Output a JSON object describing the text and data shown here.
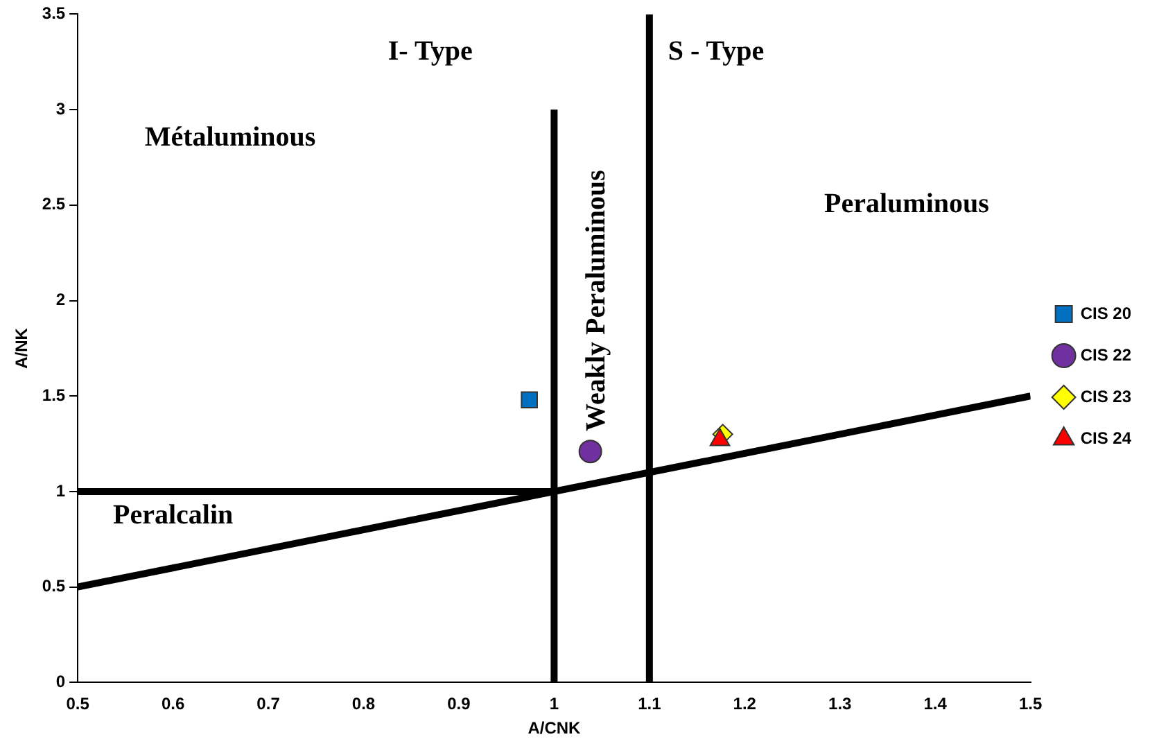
{
  "chart_data": {
    "type": "scatter",
    "xlabel": "A/CNK",
    "ylabel": "A/NK",
    "xlim": [
      0.5,
      1.5
    ],
    "ylim": [
      0,
      3.5
    ],
    "xticks": [
      0.5,
      0.6,
      0.7,
      0.8,
      0.9,
      1,
      1.1,
      1.2,
      1.3,
      1.4,
      1.5
    ],
    "yticks": [
      0,
      0.5,
      1,
      1.5,
      2,
      2.5,
      3,
      3.5
    ],
    "grid": false,
    "legend": "right",
    "annotations": [
      "I- Type",
      "S - Type",
      "Métaluminous",
      "Peraluminous",
      "Weakly Peraluminous",
      "Peralcalin"
    ],
    "series": [
      {
        "name": "CIS 20",
        "color": "#0070c0",
        "marker": "square",
        "x": [
          0.974
        ],
        "values": [
          1.48
        ]
      },
      {
        "name": "CIS 22",
        "color": "#7030a0",
        "marker": "circle",
        "x": [
          1.038
        ],
        "values": [
          1.21
        ]
      },
      {
        "name": "CIS 23",
        "color": "#ffff00",
        "marker": "diamond",
        "x": [
          1.177
        ],
        "values": [
          1.3
        ]
      },
      {
        "name": "CIS 24",
        "color": "#ff0000",
        "marker": "triangle",
        "x": [
          1.174
        ],
        "values": [
          1.27
        ]
      },
      {
        "type": "line",
        "color": "#000000",
        "marker": "none",
        "x": [
          0.5,
          1
        ],
        "values": [
          1,
          1
        ]
      },
      {
        "type": "line",
        "color": "#000000",
        "marker": "none",
        "x": [
          1,
          1
        ],
        "values": [
          0,
          3
        ]
      },
      {
        "type": "line",
        "color": "#000000",
        "marker": "none",
        "x": [
          1.1,
          1.1
        ],
        "values": [
          0,
          3.5
        ]
      },
      {
        "type": "line",
        "color": "#000000",
        "marker": "none",
        "x": [
          0.5,
          1.5
        ],
        "values": [
          0.5,
          1.5
        ]
      }
    ]
  }
}
